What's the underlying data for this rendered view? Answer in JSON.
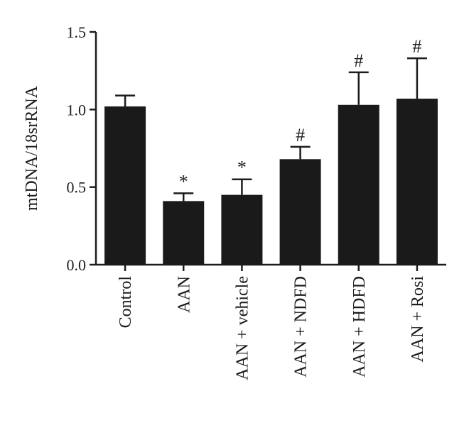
{
  "chart_data": {
    "type": "bar",
    "ylabel": "mtDNA/18srRNA",
    "xlabel": "",
    "ylim": [
      0,
      1.5
    ],
    "yticks": [
      "0.0",
      "0.5",
      "1.0",
      "1.5"
    ],
    "categories": [
      "Control",
      "AAN",
      "AAN + vehicle",
      "AAN + NDFD",
      "AAN + HDFD",
      "AAN + Rosi"
    ],
    "values": [
      1.02,
      0.41,
      0.45,
      0.68,
      1.03,
      1.07
    ],
    "errors": [
      0.07,
      0.05,
      0.1,
      0.08,
      0.21,
      0.26
    ],
    "annotations": [
      "",
      "*",
      "*",
      "#",
      "#",
      "#"
    ],
    "bar_color": "#1a1a1a",
    "grid": false,
    "legend": "none"
  }
}
